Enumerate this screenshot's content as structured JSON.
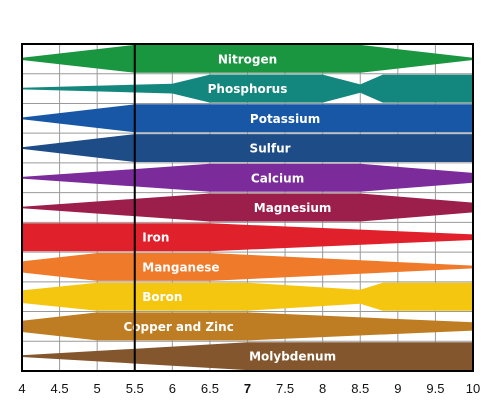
{
  "chart_data": {
    "type": "band",
    "title": "",
    "xlabel": "",
    "ylabel": "",
    "xlim": [
      4,
      10
    ],
    "grid": true,
    "x_ticks": [
      "4",
      "4.5",
      "5",
      "5.5",
      "6",
      "6.5",
      "7",
      "7.5",
      "8",
      "8.5",
      "9",
      "9.5",
      "10"
    ],
    "x_ticks_bold": [
      "7"
    ],
    "reference_line_x": 5.5,
    "series": [
      {
        "name": "Nitrogen",
        "color": "#1a9641",
        "profile": [
          [
            4,
            0.08
          ],
          [
            5.5,
            1.0
          ],
          [
            8.5,
            1.0
          ],
          [
            10,
            0.08
          ]
        ]
      },
      {
        "name": "Phosphorus",
        "color": "#13877e",
        "profile": [
          [
            4,
            0.06
          ],
          [
            6,
            0.35
          ],
          [
            6.5,
            1.0
          ],
          [
            8,
            1.0
          ],
          [
            8.5,
            0.3
          ],
          [
            8.8,
            1.0
          ],
          [
            10,
            1.0
          ]
        ]
      },
      {
        "name": "Potassium",
        "color": "#1757a6",
        "profile": [
          [
            4,
            0.06
          ],
          [
            5.5,
            1.0
          ],
          [
            10,
            1.0
          ]
        ]
      },
      {
        "name": "Sulfur",
        "color": "#1d4c86",
        "profile": [
          [
            4,
            0.06
          ],
          [
            5.5,
            1.0
          ],
          [
            10,
            1.0
          ]
        ]
      },
      {
        "name": "Calcium",
        "color": "#7b2c9a",
        "profile": [
          [
            4,
            0.06
          ],
          [
            6.5,
            1.0
          ],
          [
            8.5,
            1.0
          ],
          [
            10,
            0.35
          ]
        ]
      },
      {
        "name": "Magnesium",
        "color": "#9c1e4a",
        "profile": [
          [
            4,
            0.06
          ],
          [
            6.5,
            1.0
          ],
          [
            8.5,
            1.0
          ],
          [
            10,
            0.35
          ]
        ]
      },
      {
        "name": "Iron",
        "color": "#e0202a",
        "profile": [
          [
            4,
            1.0
          ],
          [
            6.5,
            1.0
          ],
          [
            10,
            0.2
          ]
        ]
      },
      {
        "name": "Manganese",
        "color": "#ef7a2a",
        "profile": [
          [
            4,
            0.4
          ],
          [
            5,
            1.0
          ],
          [
            6.5,
            1.0
          ],
          [
            10,
            0.1
          ]
        ]
      },
      {
        "name": "Boron",
        "color": "#f5c60f",
        "profile": [
          [
            4,
            0.45
          ],
          [
            5,
            1.0
          ],
          [
            7,
            1.0
          ],
          [
            8.5,
            0.5
          ],
          [
            8.8,
            1.0
          ],
          [
            10,
            1.0
          ]
        ]
      },
      {
        "name": "Copper and Zinc",
        "color": "#be7d22",
        "profile": [
          [
            4,
            0.4
          ],
          [
            5,
            1.0
          ],
          [
            7,
            1.0
          ],
          [
            10,
            0.3
          ]
        ]
      },
      {
        "name": "Molybdenum",
        "color": "#83562d",
        "profile": [
          [
            4,
            0.06
          ],
          [
            7,
            1.0
          ],
          [
            10,
            1.0
          ]
        ]
      }
    ]
  }
}
